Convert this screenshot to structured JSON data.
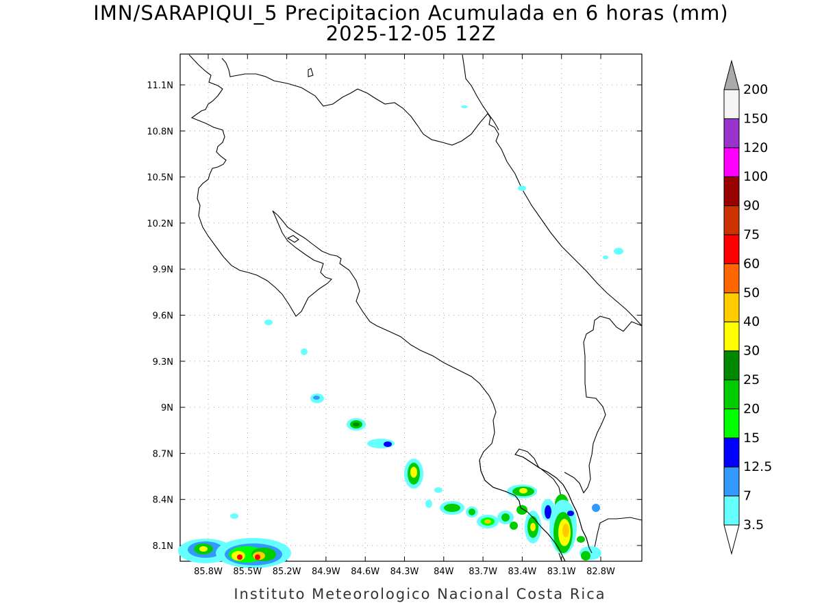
{
  "title": {
    "line1": "IMN/SARAPIQUI_5 Precipitacion Acumulada en 6 horas (mm)",
    "line2": "2025-12-05 12Z"
  },
  "footer": "Instituto Meteorologico Nacional Costa Rica",
  "map": {
    "lon_range": [
      -86.0,
      -82.6
    ],
    "lat_range": [
      8.0,
      11.2
    ],
    "lat_ticks": [
      "11.1N",
      "10.8N",
      "10.5N",
      "10.2N",
      "9.9N",
      "9.6N",
      "9.3N",
      "9N",
      "8.7N",
      "8.4N",
      "8.1N"
    ],
    "lon_ticks": [
      "85.8W",
      "85.5W",
      "85.2W",
      "84.9W",
      "84.6W",
      "84.3W",
      "84W",
      "83.7W",
      "83.4W",
      "83.1W",
      "82.8W"
    ],
    "gridlines": true
  },
  "colorbar": {
    "labels": [
      "3.5",
      "7",
      "12.5",
      "15",
      "20",
      "25",
      "30",
      "40",
      "50",
      "60",
      "75",
      "90",
      "100",
      "120",
      "150",
      "200"
    ],
    "colors": [
      "#66ffff",
      "#3399ff",
      "#0000ff",
      "#00ff00",
      "#00cc00",
      "#008800",
      "#ffff00",
      "#ffcc00",
      "#ff6600",
      "#ff0000",
      "#cc3300",
      "#990000",
      "#ff00ff",
      "#9933cc",
      "#f5f5f5"
    ],
    "over_color": "#aaaaaa"
  }
}
